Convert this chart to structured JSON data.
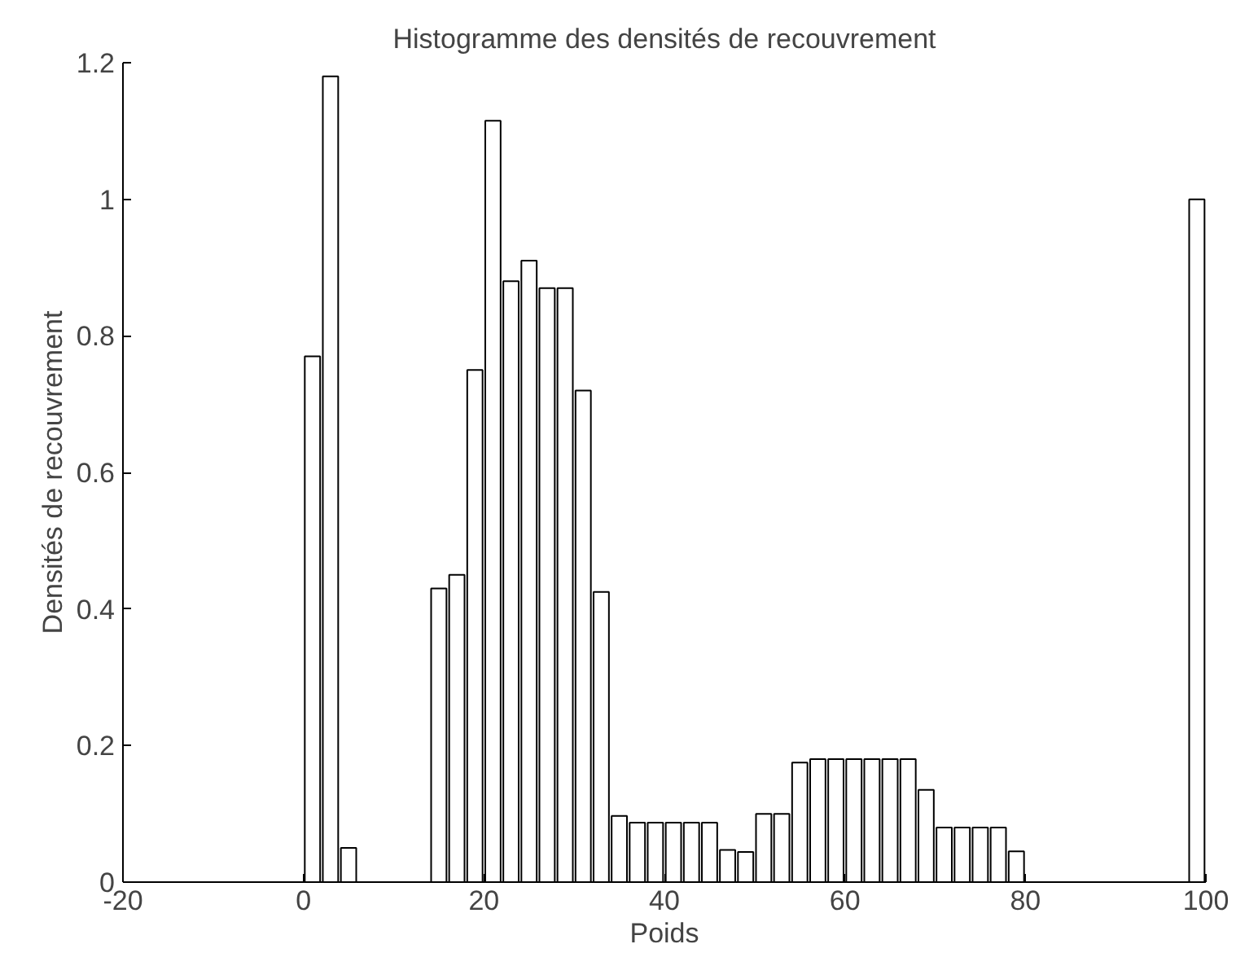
{
  "chart_data": {
    "type": "bar",
    "title": "Histogramme des densités de recouvrement",
    "xlabel": "Poids",
    "ylabel": "Densités de recouvrement",
    "x": [
      1,
      3,
      5,
      15,
      17,
      19,
      21,
      23,
      25,
      27,
      29,
      31,
      33,
      35,
      37,
      39,
      41,
      43,
      45,
      47,
      49,
      51,
      53,
      55,
      57,
      59,
      61,
      63,
      65,
      67,
      69,
      71,
      73,
      75,
      77,
      79,
      99
    ],
    "values": [
      0.77,
      1.18,
      0.05,
      0.43,
      0.45,
      0.75,
      1.115,
      0.88,
      0.91,
      0.87,
      0.87,
      0.72,
      0.425,
      0.097,
      0.087,
      0.087,
      0.087,
      0.087,
      0.087,
      0.047,
      0.044,
      0.1,
      0.1,
      0.175,
      0.18,
      0.18,
      0.18,
      0.18,
      0.18,
      0.18,
      0.135,
      0.08,
      0.08,
      0.08,
      0.08,
      0.045,
      1.0
    ],
    "color": "#ffffff",
    "xlim": [
      -20,
      100
    ],
    "xticks": [
      -20,
      0,
      20,
      40,
      60,
      80,
      100
    ],
    "ylim": [
      0,
      1.2
    ],
    "yticks": [
      0,
      0.2,
      0.4,
      0.6,
      0.8,
      1,
      1.2
    ],
    "grid": false
  }
}
